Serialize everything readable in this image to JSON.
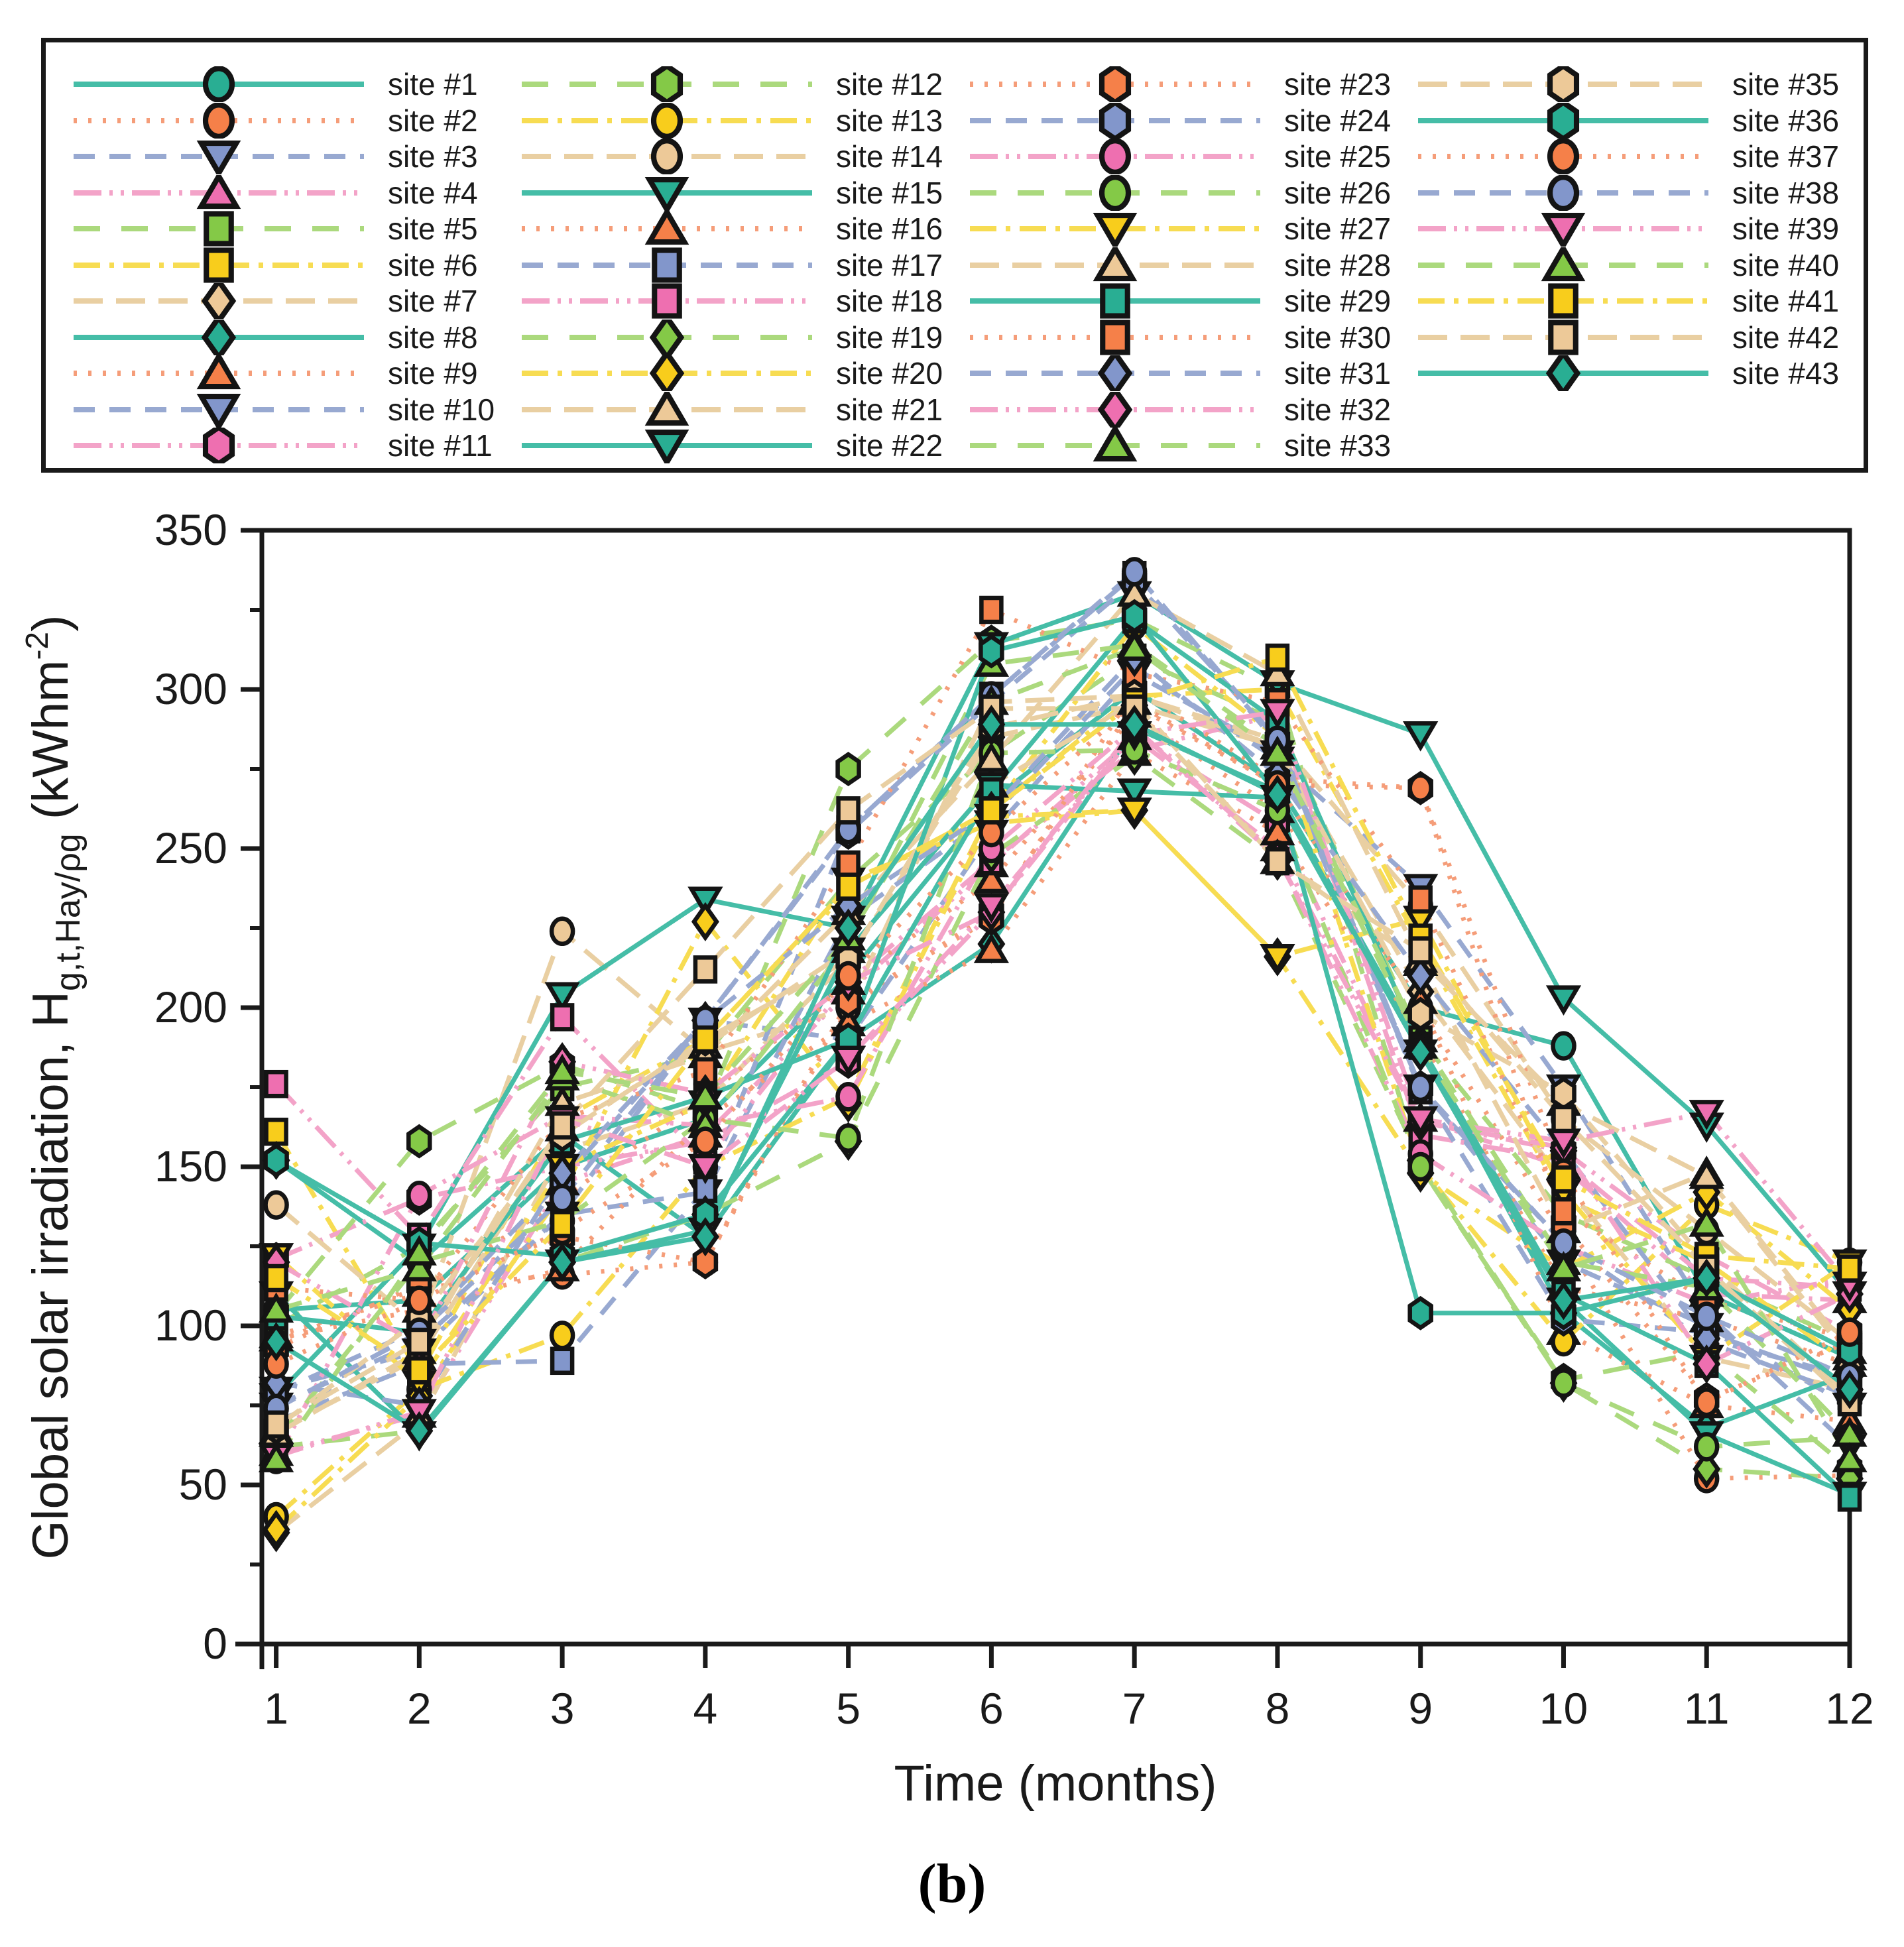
{
  "caption": "(b)",
  "chart_data": {
    "type": "line",
    "xlabel": "Time (months)",
    "ylabel": {
      "main": "Global solar irradiation, H",
      "sub": "g,t,Hay/ρg",
      "pre": " (kWhm",
      "sup": "-2",
      "post": ")"
    },
    "x": [
      1,
      2,
      3,
      4,
      5,
      6,
      7,
      8,
      9,
      10,
      11,
      12
    ],
    "xlim": [
      0.9,
      12.0
    ],
    "ylim": [
      0,
      350
    ],
    "xticks": [
      1,
      2,
      3,
      4,
      5,
      6,
      7,
      8,
      9,
      10,
      11,
      12
    ],
    "yticks": [
      0,
      50,
      100,
      150,
      200,
      250,
      300,
      350
    ],
    "yticks_minor": [
      25,
      75,
      125,
      175,
      225,
      275,
      325
    ],
    "grid": false,
    "legend_position": "top-box",
    "frame_color": "#1a1a1a",
    "marker_stroke": "#141414",
    "families": {
      "teal": {
        "line": "#45bda7",
        "fill": "#29ae93",
        "dash": ""
      },
      "orange": {
        "line": "#f59d79",
        "fill": "#f58049",
        "dash": "5 17"
      },
      "bluegray": {
        "line": "#98a9d1",
        "fill": "#8296cb",
        "dash": "32 22"
      },
      "pink": {
        "line": "#f3a3c8",
        "fill": "#ee6fb0",
        "dash": "42 12 5 12 5 12"
      },
      "green": {
        "line": "#abd97d",
        "fill": "#84c947",
        "dash": "40 32"
      },
      "yellow": {
        "line": "#f7dc52",
        "fill": "#f8cd1c",
        "dash": "40 14 7 14"
      },
      "tan": {
        "line": "#e9cfa2",
        "fill": "#edc998",
        "dash": "44 20"
      }
    },
    "legend_column_sizes": [
      11,
      11,
      11,
      9
    ],
    "series": [
      {
        "name": "site #1",
        "family": "teal",
        "marker": "circle",
        "values": [
          105,
          108,
          150,
          165,
          210,
          265,
          300,
          270,
          200,
          188,
          110,
          90
        ]
      },
      {
        "name": "site #2",
        "family": "orange",
        "marker": "circle",
        "values": [
          95,
          112,
          116,
          120,
          200,
          230,
          295,
          270,
          200,
          128,
          52,
          53
        ]
      },
      {
        "name": "site #3",
        "family": "bluegray",
        "marker": "tri-down",
        "values": [
          80,
          92,
          135,
          196,
          190,
          255,
          305,
          280,
          175,
          120,
          100,
          75
        ]
      },
      {
        "name": "site #4",
        "family": "pink",
        "marker": "tri-up",
        "values": [
          60,
          72,
          145,
          160,
          205,
          245,
          285,
          250,
          165,
          150,
          110,
          108
        ]
      },
      {
        "name": "site #5",
        "family": "green",
        "marker": "square",
        "values": [
          100,
          125,
          175,
          185,
          240,
          280,
          310,
          290,
          190,
          135,
          115,
          95
        ]
      },
      {
        "name": "site #6",
        "family": "yellow",
        "marker": "square",
        "values": [
          161,
          85,
          165,
          190,
          238,
          262,
          298,
          300,
          220,
          140,
          120,
          88
        ]
      },
      {
        "name": "site #7",
        "family": "tan",
        "marker": "diamond",
        "values": [
          35,
          70,
          155,
          170,
          215,
          285,
          295,
          282,
          205,
          145,
          90,
          80
        ]
      },
      {
        "name": "site #8",
        "family": "teal",
        "marker": "diamond",
        "values": [
          152,
          120,
          160,
          128,
          190,
          220,
          288,
          268,
          188,
          104,
          68,
          85
        ]
      },
      {
        "name": "site #9",
        "family": "orange",
        "marker": "tri-up",
        "values": [
          97,
          110,
          140,
          172,
          208,
          240,
          292,
          262,
          202,
          98,
          75,
          70
        ]
      },
      {
        "name": "site #10",
        "family": "bluegray",
        "marker": "tri-down",
        "values": [
          75,
          95,
          135,
          142,
          228,
          260,
          307,
          278,
          238,
          175,
          104,
          62
        ]
      },
      {
        "name": "site #11",
        "family": "pink",
        "marker": "hexagon",
        "values": [
          121,
          140,
          150,
          158,
          183,
          230,
          286,
          258,
          164,
          155,
          122,
          98
        ]
      },
      {
        "name": "site #12",
        "family": "green",
        "marker": "hexagon",
        "values": [
          104,
          158,
          182,
          168,
          275,
          315,
          322,
          300,
          150,
          83,
          92,
          55
        ]
      },
      {
        "name": "site #13",
        "family": "yellow",
        "marker": "circle",
        "values": [
          40,
          80,
          97,
          150,
          172,
          262,
          320,
          285,
          150,
          95,
          138,
          120
        ]
      },
      {
        "name": "site #14",
        "family": "tan",
        "marker": "circle",
        "values": [
          138,
          100,
          224,
          186,
          200,
          296,
          298,
          284,
          232,
          165,
          130,
          95
        ]
      },
      {
        "name": "site #15",
        "family": "teal",
        "marker": "tri-down",
        "values": [
          78,
          125,
          204,
          234,
          225,
          314,
          330,
          302,
          286,
          203,
          163,
          110
        ]
      },
      {
        "name": "site #16",
        "family": "orange",
        "marker": "tri-up",
        "values": [
          96,
          105,
          118,
          165,
          195,
          218,
          280,
          255,
          190,
          112,
          102,
          88
        ]
      },
      {
        "name": "site #17",
        "family": "bluegray",
        "marker": "square",
        "values": [
          70,
          88,
          89,
          143,
          256,
          298,
          336,
          283,
          174,
          126,
          95,
          78
        ]
      },
      {
        "name": "site #18",
        "family": "pink",
        "marker": "square",
        "values": [
          176,
          128,
          197,
          152,
          208,
          246,
          281,
          292,
          160,
          152,
          115,
          112
        ]
      },
      {
        "name": "site #19",
        "family": "green",
        "marker": "diamond",
        "values": [
          62,
          67,
          120,
          135,
          158,
          248,
          279,
          246,
          152,
          82,
          55,
          52
        ]
      },
      {
        "name": "site #20",
        "family": "yellow",
        "marker": "diamond",
        "values": [
          36,
          78,
          142,
          227,
          170,
          260,
          262,
          216,
          148,
          118,
          142,
          105
        ]
      },
      {
        "name": "site #21",
        "family": "tan",
        "marker": "tri-up",
        "values": [
          67,
          90,
          162,
          188,
          218,
          270,
          296,
          246,
          214,
          130,
          148,
          92
        ]
      },
      {
        "name": "site #22",
        "family": "teal",
        "marker": "tri-down",
        "values": [
          110,
          66,
          120,
          130,
          218,
          270,
          268,
          266,
          186,
          108,
          66,
          47
        ]
      },
      {
        "name": "site #23",
        "family": "orange",
        "marker": "hexagon",
        "values": [
          93,
          113,
          128,
          120,
          202,
          228,
          300,
          272,
          269,
          132,
          77,
          95
        ]
      },
      {
        "name": "site #24",
        "family": "bluegray",
        "marker": "hexagon",
        "values": [
          79,
          99,
          146,
          196,
          255,
          296,
          334,
          284,
          175,
          102,
          98,
          82
        ]
      },
      {
        "name": "site #25",
        "family": "pink",
        "marker": "circle",
        "values": [
          58,
          141,
          166,
          163,
          172,
          250,
          288,
          248,
          154,
          125,
          107,
          115
        ]
      },
      {
        "name": "site #26",
        "family": "green",
        "marker": "circle",
        "values": [
          64,
          120,
          133,
          165,
          159,
          280,
          281,
          262,
          150,
          82,
          62,
          65
        ]
      },
      {
        "name": "site #27",
        "family": "yellow",
        "marker": "tri-down",
        "values": [
          122,
          82,
          150,
          170,
          240,
          258,
          262,
          216,
          228,
          142,
          90,
          120
        ]
      },
      {
        "name": "site #28",
        "family": "tan",
        "marker": "tri-up",
        "values": [
          66,
          92,
          170,
          185,
          230,
          278,
          330,
          305,
          215,
          170,
          147,
          90
        ]
      },
      {
        "name": "site #29",
        "family": "teal",
        "marker": "square",
        "values": [
          103,
          98,
          158,
          172,
          190,
          268,
          322,
          290,
          188,
          110,
          88,
          46
        ]
      },
      {
        "name": "site #30",
        "family": "orange",
        "marker": "square",
        "values": [
          112,
          108,
          165,
          180,
          245,
          325,
          305,
          296,
          234,
          136,
          108,
          96
        ]
      },
      {
        "name": "site #31",
        "family": "bluegray",
        "marker": "diamond",
        "values": [
          82,
          75,
          148,
          196,
          232,
          262,
          310,
          273,
          210,
          155,
          96,
          84
        ]
      },
      {
        "name": "site #32",
        "family": "pink",
        "marker": "diamond",
        "values": [
          120,
          94,
          183,
          173,
          208,
          230,
          288,
          247,
          164,
          156,
          88,
          110
        ]
      },
      {
        "name": "site #33",
        "family": "green",
        "marker": "tri-up",
        "values": [
          105,
          118,
          178,
          163,
          220,
          308,
          314,
          282,
          190,
          120,
          112,
          66
        ]
      },
      {
        "name": "site #35",
        "family": "tan",
        "marker": "hexagon",
        "values": [
          68,
          102,
          160,
          190,
          215,
          288,
          298,
          282,
          198,
          173,
          120,
          78
        ]
      },
      {
        "name": "site #36",
        "family": "teal",
        "marker": "hexagon",
        "values": [
          152,
          126,
          122,
          135,
          190,
          312,
          323,
          267,
          104,
          104,
          115,
          92
        ]
      },
      {
        "name": "site #37",
        "family": "orange",
        "marker": "circle",
        "values": [
          88,
          108,
          130,
          158,
          210,
          255,
          296,
          270,
          269,
          148,
          76,
          98
        ]
      },
      {
        "name": "site #38",
        "family": "bluegray",
        "marker": "circle",
        "values": [
          74,
          98,
          140,
          196,
          256,
          298,
          337,
          284,
          175,
          126,
          103,
          84
        ]
      },
      {
        "name": "site #39",
        "family": "pink",
        "marker": "tri-down",
        "values": [
          59,
          73,
          165,
          150,
          184,
          232,
          286,
          293,
          165,
          158,
          167,
          113
        ]
      },
      {
        "name": "site #40",
        "family": "green",
        "marker": "tri-up",
        "values": [
          58,
          123,
          180,
          172,
          222,
          296,
          313,
          280,
          188,
          118,
          132,
          58
        ]
      },
      {
        "name": "site #41",
        "family": "yellow",
        "marker": "square",
        "values": [
          115,
          86,
          132,
          190,
          238,
          262,
          296,
          310,
          222,
          146,
          122,
          118
        ]
      },
      {
        "name": "site #42",
        "family": "tan",
        "marker": "square",
        "values": [
          69,
          95,
          163,
          212,
          262,
          294,
          294,
          246,
          218,
          165,
          118,
          76
        ]
      },
      {
        "name": "site #43",
        "family": "teal",
        "marker": "diamond",
        "values": [
          95,
          67,
          120,
          128,
          225,
          289,
          289,
          267,
          186,
          108,
          115,
          80
        ]
      }
    ]
  }
}
